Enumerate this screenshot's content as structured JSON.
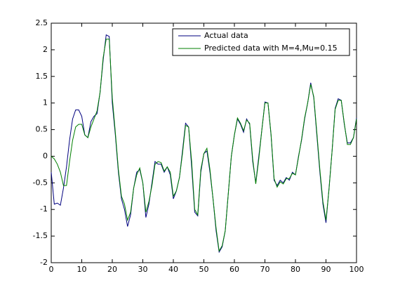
{
  "chart_data": {
    "type": "line",
    "x": [
      0,
      1,
      2,
      3,
      4,
      5,
      6,
      7,
      8,
      9,
      10,
      11,
      12,
      13,
      14,
      15,
      16,
      17,
      18,
      19,
      20,
      21,
      22,
      23,
      24,
      25,
      26,
      27,
      28,
      29,
      30,
      31,
      32,
      33,
      34,
      35,
      36,
      37,
      38,
      39,
      40,
      41,
      42,
      43,
      44,
      45,
      46,
      47,
      48,
      49,
      50,
      51,
      52,
      53,
      54,
      55,
      56,
      57,
      58,
      59,
      60,
      61,
      62,
      63,
      64,
      65,
      66,
      67,
      68,
      69,
      70,
      71,
      72,
      73,
      74,
      75,
      76,
      77,
      78,
      79,
      80,
      81,
      82,
      83,
      84,
      85,
      86,
      87,
      88,
      89,
      90,
      91,
      92,
      93,
      94,
      95,
      96,
      97,
      98,
      99,
      100
    ],
    "series": [
      {
        "name": "Actual data",
        "color": "#00007f",
        "values": [
          -0.3,
          -0.9,
          -0.88,
          -0.92,
          -0.6,
          -0.2,
          0.3,
          0.7,
          0.87,
          0.87,
          0.75,
          0.4,
          0.35,
          0.65,
          0.75,
          0.8,
          1.2,
          1.8,
          2.28,
          2.25,
          1.0,
          0.4,
          -0.3,
          -0.8,
          -1.0,
          -1.32,
          -1.1,
          -0.6,
          -0.3,
          -0.25,
          -0.5,
          -1.15,
          -0.9,
          -0.5,
          -0.1,
          -0.15,
          -0.15,
          -0.3,
          -0.2,
          -0.35,
          -0.8,
          -0.65,
          -0.4,
          0.1,
          0.62,
          0.55,
          -0.2,
          -1.05,
          -1.12,
          -0.3,
          0.05,
          0.1,
          -0.3,
          -0.8,
          -1.4,
          -1.8,
          -1.7,
          -1.4,
          -0.7,
          0.0,
          0.4,
          0.7,
          0.6,
          0.45,
          0.7,
          0.6,
          -0.1,
          -0.5,
          0.0,
          0.5,
          1.02,
          1.0,
          0.4,
          -0.45,
          -0.55,
          -0.45,
          -0.5,
          -0.4,
          -0.45,
          -0.3,
          -0.35,
          0.0,
          0.3,
          0.7,
          1.0,
          1.38,
          1.1,
          0.4,
          -0.3,
          -0.9,
          -1.25,
          -0.6,
          0.1,
          0.9,
          1.08,
          1.05,
          0.6,
          0.25,
          0.25,
          0.35,
          0.72
        ]
      },
      {
        "name": "Predicted data with M=4,Mu=0.15",
        "color": "#007f00",
        "values": [
          0.0,
          -0.05,
          -0.15,
          -0.3,
          -0.55,
          -0.55,
          -0.1,
          0.3,
          0.55,
          0.6,
          0.6,
          0.4,
          0.35,
          0.55,
          0.7,
          0.85,
          1.2,
          1.85,
          2.2,
          2.2,
          1.1,
          0.45,
          -0.25,
          -0.75,
          -0.9,
          -1.2,
          -1.05,
          -0.6,
          -0.35,
          -0.22,
          -0.5,
          -1.05,
          -0.85,
          -0.55,
          -0.15,
          -0.1,
          -0.12,
          -0.28,
          -0.2,
          -0.3,
          -0.75,
          -0.65,
          -0.4,
          0.05,
          0.58,
          0.55,
          -0.1,
          -1.0,
          -1.1,
          -0.25,
          0.05,
          0.15,
          -0.25,
          -0.8,
          -1.35,
          -1.78,
          -1.68,
          -1.4,
          -0.7,
          0.0,
          0.4,
          0.72,
          0.62,
          0.48,
          0.68,
          0.62,
          -0.05,
          -0.52,
          -0.05,
          0.5,
          1.0,
          1.0,
          0.42,
          -0.42,
          -0.58,
          -0.48,
          -0.52,
          -0.42,
          -0.42,
          -0.32,
          -0.35,
          -0.02,
          0.32,
          0.72,
          1.0,
          1.35,
          1.12,
          0.45,
          -0.25,
          -0.85,
          -1.2,
          -0.62,
          0.1,
          0.88,
          1.05,
          1.05,
          0.62,
          0.22,
          0.22,
          0.35,
          0.7
        ]
      }
    ],
    "xlim": [
      0,
      100
    ],
    "xticks": [
      0,
      10,
      20,
      30,
      40,
      50,
      60,
      70,
      80,
      90,
      100
    ],
    "ylim": [
      -2,
      2.5
    ],
    "yticks": [
      -2,
      -1.5,
      -1,
      -0.5,
      0,
      0.5,
      1,
      1.5,
      2,
      2.5
    ],
    "legend": "upper right"
  }
}
